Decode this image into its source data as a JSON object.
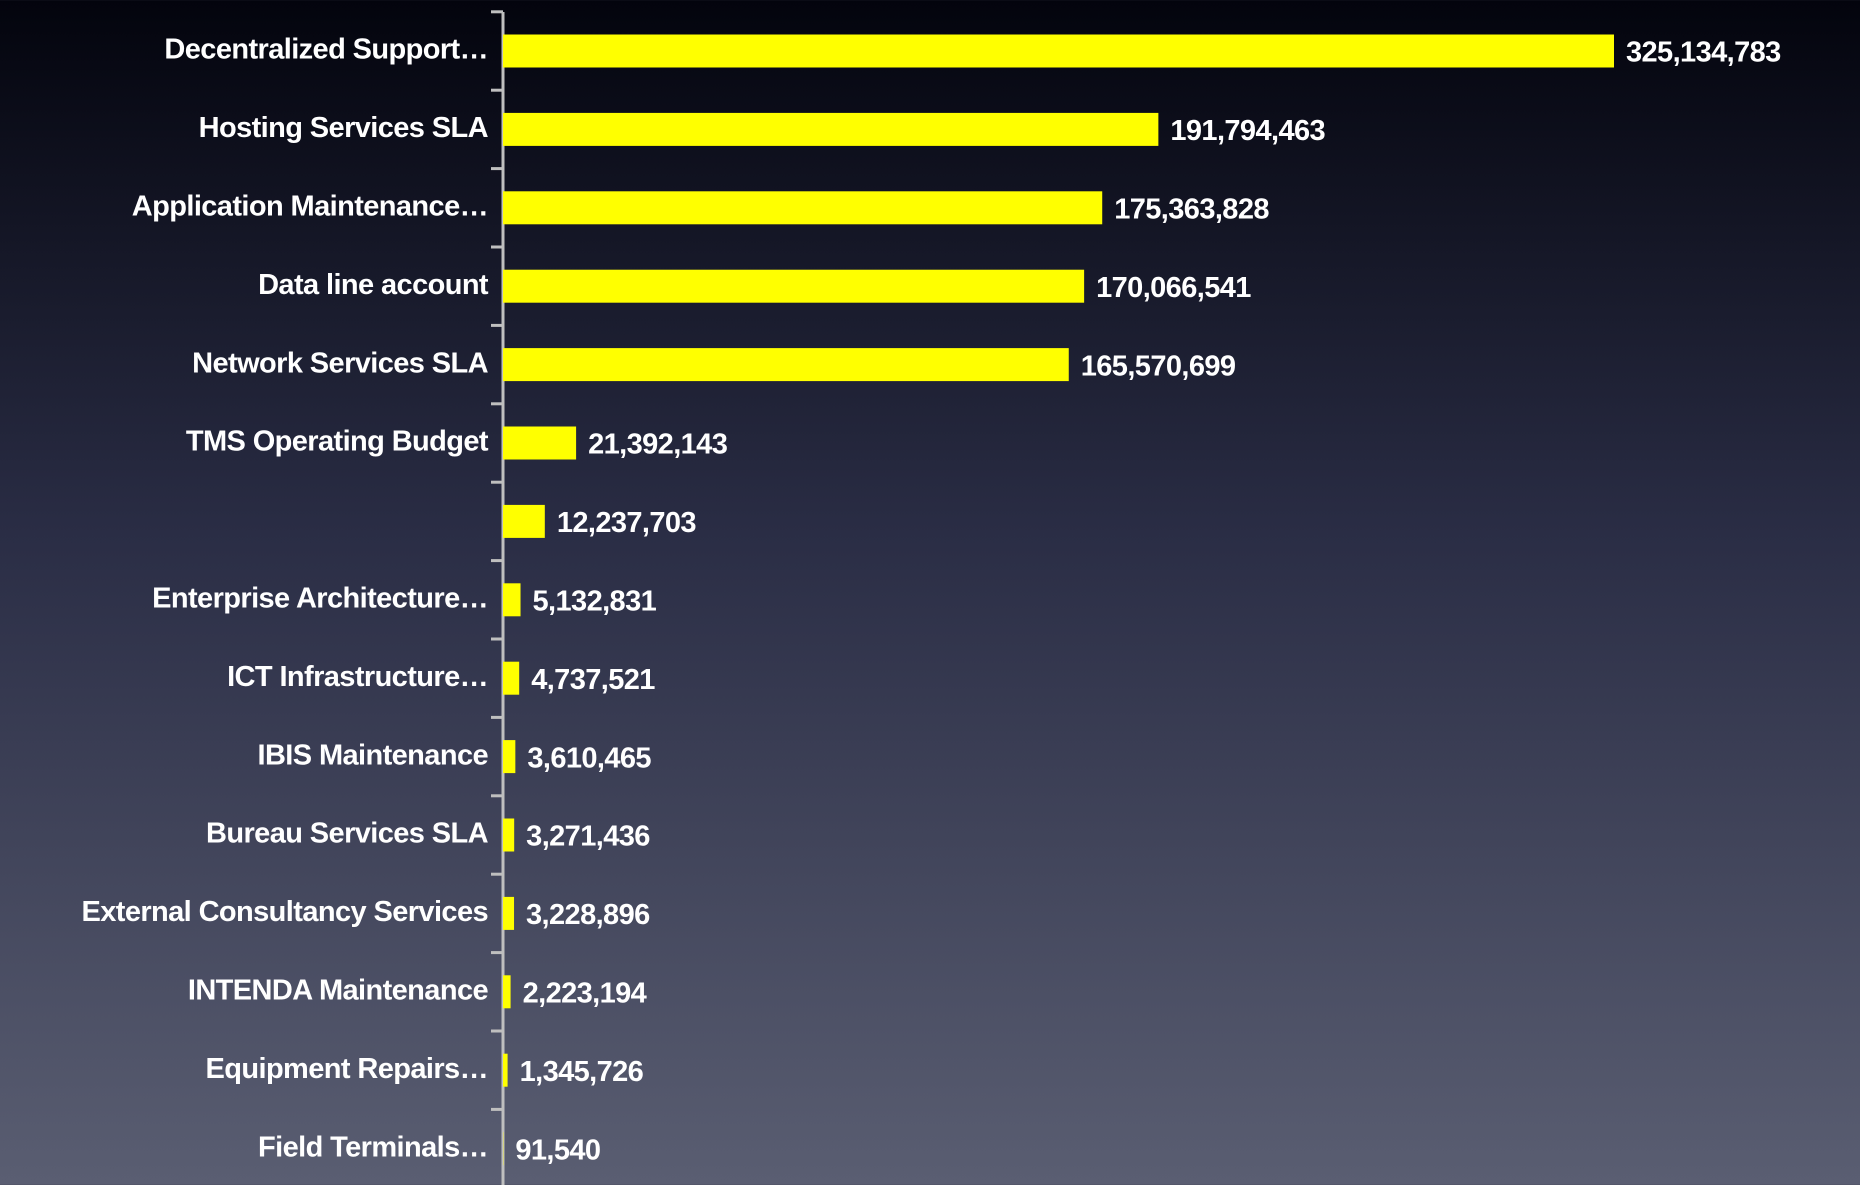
{
  "chart_data": {
    "type": "bar",
    "orientation": "horizontal",
    "color": "#ffff00",
    "categories": [
      "Decentralized Support…",
      "Hosting Services SLA",
      "Application Maintenance…",
      "Data line account",
      "Network Services SLA",
      "TMS Operating Budget",
      null,
      "Enterprise Architecture…",
      "ICT Infrastructure…",
      "IBIS Maintenance",
      "Bureau Services SLA",
      "External Consultancy Services",
      "INTENDA Maintenance",
      "Equipment Repairs…",
      "Field Terminals…"
    ],
    "values": [
      325134783,
      191794463,
      175363828,
      170066541,
      165570699,
      21392143,
      12237703,
      5132831,
      4737521,
      3610465,
      3271436,
      3228896,
      2223194,
      1345726,
      91540
    ],
    "value_labels": [
      "325,134,783",
      "191,794,463",
      "175,363,828",
      "170,066,541",
      "165,570,699",
      "21,392,143",
      "12,237,703",
      "5,132,831",
      "4,737,521",
      "3,610,465",
      "3,271,436",
      "3,228,896",
      "2,223,194",
      "1,345,726",
      "91,540"
    ]
  }
}
